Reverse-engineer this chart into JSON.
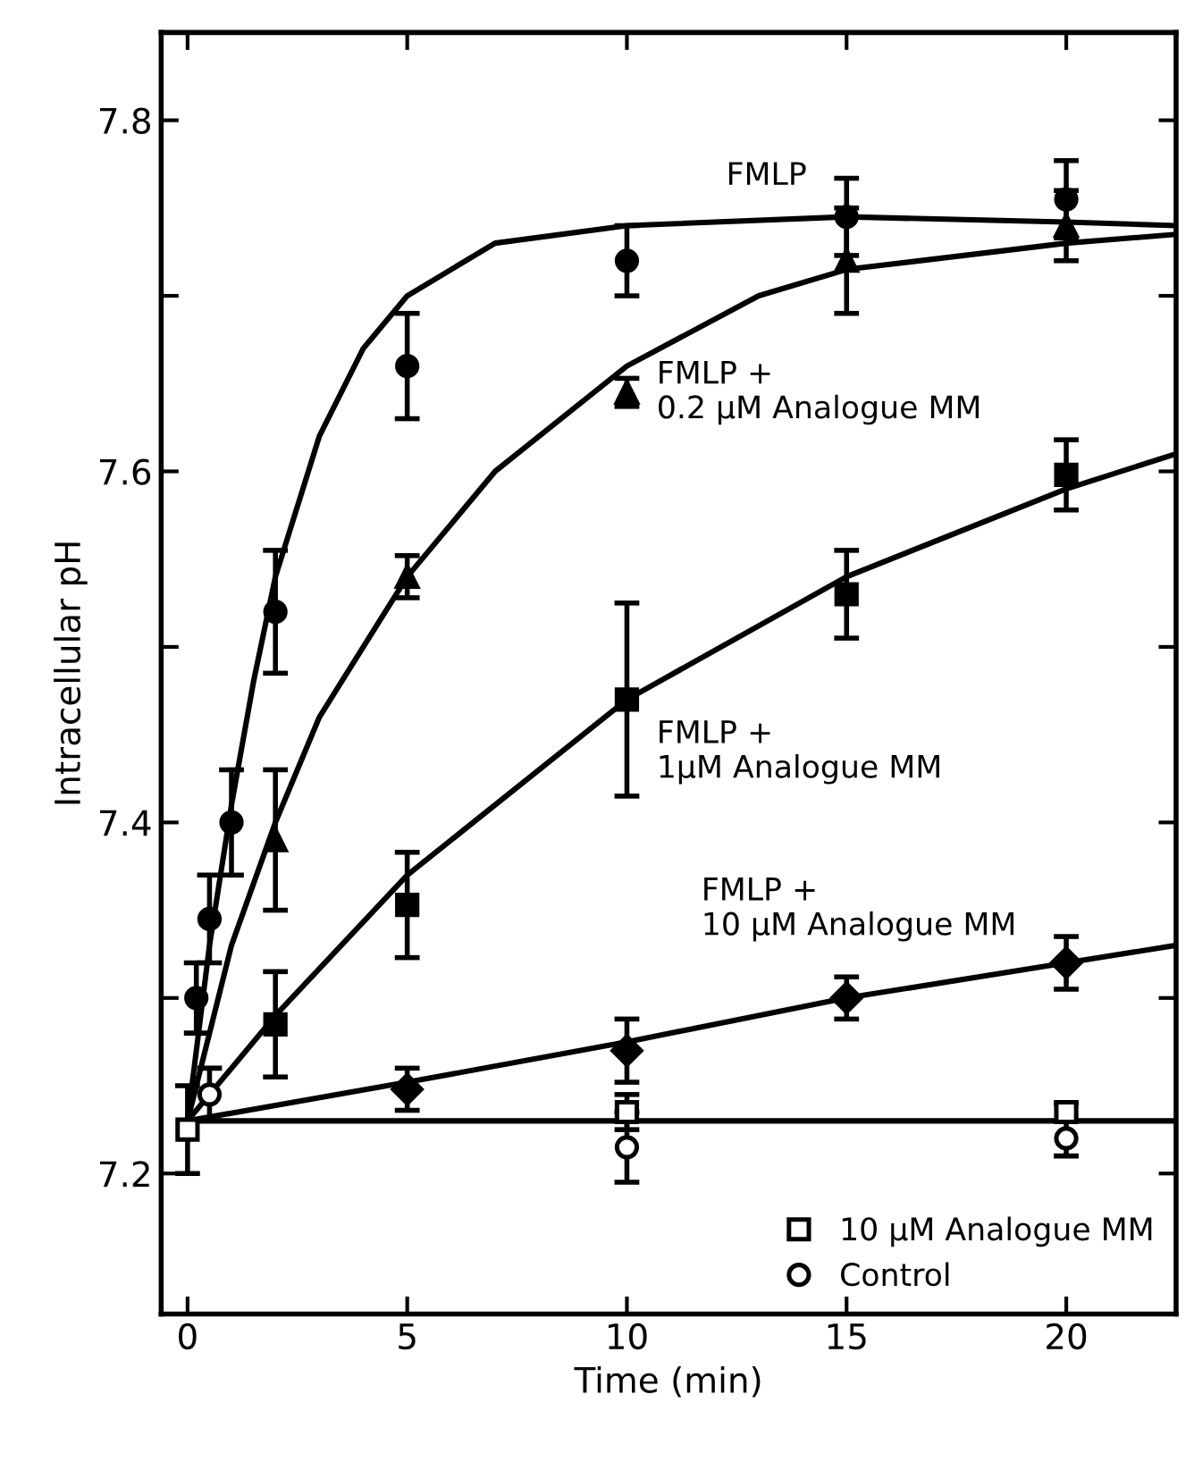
{
  "chart_data": {
    "type": "scatter",
    "xlabel": "Time (min)",
    "ylabel": "Intracellular pH",
    "xlim": [
      -0.6,
      22.5
    ],
    "ylim": [
      7.12,
      7.85
    ],
    "xticks": [
      0,
      5,
      10,
      15,
      20
    ],
    "yticks": [
      7.2,
      {
        "value": 7.3,
        "label": null
      },
      7.4,
      {
        "value": 7.5,
        "label": null
      },
      7.6,
      {
        "value": 7.7,
        "label": null
      },
      7.8
    ],
    "grid": false,
    "legend": "bottom right",
    "line_style": "solid",
    "series": [
      {
        "type": "line",
        "color": "#000000",
        "marker": "none",
        "x": [
          0,
          0.5,
          1,
          1.5,
          2,
          3,
          4,
          5,
          7,
          10,
          15,
          20,
          22.5
        ],
        "values": [
          7.23,
          7.33,
          7.41,
          7.48,
          7.54,
          7.62,
          7.67,
          7.7,
          7.73,
          7.74,
          7.745,
          7.742,
          7.74
        ]
      },
      {
        "type": "line",
        "color": "#000000",
        "marker": "none",
        "x": [
          0,
          1,
          2,
          3,
          5,
          7,
          10,
          13,
          15,
          20,
          22.5
        ],
        "values": [
          7.23,
          7.33,
          7.4,
          7.46,
          7.54,
          7.6,
          7.66,
          7.7,
          7.715,
          7.73,
          7.735
        ]
      },
      {
        "type": "line",
        "color": "#000000",
        "marker": "none",
        "x": [
          0,
          2,
          5,
          10,
          15,
          20,
          22.5
        ],
        "values": [
          7.23,
          7.29,
          7.37,
          7.47,
          7.54,
          7.59,
          7.61
        ]
      },
      {
        "type": "line",
        "color": "#000000",
        "marker": "none",
        "x": [
          0,
          5,
          10,
          15,
          20,
          22.5
        ],
        "values": [
          7.23,
          7.252,
          7.275,
          7.3,
          7.32,
          7.33
        ]
      },
      {
        "type": "line",
        "color": "#000000",
        "marker": "none",
        "x": [
          0,
          22.5
        ],
        "values": [
          7.23,
          7.23
        ]
      },
      {
        "name": "FMLP",
        "color": "#000000",
        "marker": "circle",
        "x": [
          0.2,
          0.5,
          1,
          2,
          5,
          10,
          15,
          20
        ],
        "values": [
          7.3,
          7.345,
          7.4,
          7.52,
          7.66,
          7.72,
          7.745,
          7.755
        ],
        "errors": [
          0.02,
          0.025,
          0.03,
          0.035,
          0.03,
          0.02,
          0.022,
          0.022
        ]
      },
      {
        "name": "FMLP +\n0.2 µM Analogue MM",
        "color": "#000000",
        "marker": "triangle",
        "x": [
          2,
          5,
          10,
          15,
          20
        ],
        "values": [
          7.39,
          7.54,
          7.645,
          7.72,
          7.74
        ],
        "errors": [
          0.04,
          0.012,
          0.008,
          0.03,
          0.02
        ]
      },
      {
        "name": "FMLP +\n1µM Analogue MM",
        "color": "#000000",
        "marker": "square",
        "x": [
          2,
          5,
          10,
          15,
          20
        ],
        "values": [
          7.285,
          7.353,
          7.47,
          7.53,
          7.598
        ],
        "errors": [
          0.03,
          0.03,
          0.055,
          0.025,
          0.02
        ]
      },
      {
        "name": "FMLP +\n10 µM Analogue MM",
        "color": "#000000",
        "marker": "diamond",
        "x": [
          5,
          10,
          15,
          20
        ],
        "values": [
          7.248,
          7.27,
          7.3,
          7.32
        ],
        "errors": [
          0.012,
          0.018,
          0.012,
          0.015
        ]
      },
      {
        "name": "10 µM Analogue MM",
        "color": "#ffffff",
        "marker": "square",
        "x": [
          0,
          10,
          20
        ],
        "values": [
          7.225,
          7.235,
          7.235
        ],
        "errors": [
          0.025,
          0.01,
          0.005
        ]
      },
      {
        "name": "Control",
        "color": "#ffffff",
        "marker": "circle",
        "x": [
          0.5,
          10,
          20
        ],
        "values": [
          7.245,
          7.215,
          7.22
        ],
        "errors": [
          0.015,
          0.02,
          0.01
        ]
      }
    ]
  }
}
